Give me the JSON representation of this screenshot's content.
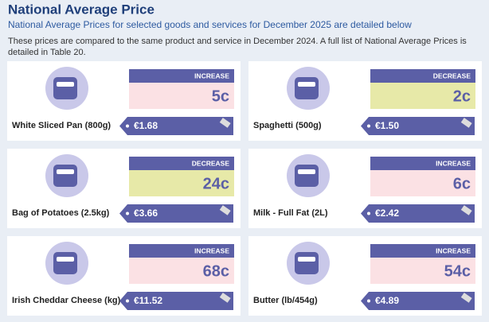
{
  "header": {
    "title": "National Average Price",
    "subtitle": "National Average Prices for selected goods and services for December 2025 are detailed below",
    "note": [
      "These prices are compared to the same product and service in December 2024. A full list of National Average Prices is",
      "detailed in Table 20."
    ]
  },
  "items": [
    {
      "name": "White Sliced Pan (800g)",
      "change_label": "INCREASE",
      "change": "5c",
      "price": "€1.68",
      "color": "#fbe1e4"
    },
    {
      "name": "Spaghetti (500g)",
      "change_label": "DECREASE",
      "change": "2c",
      "price": "€1.50",
      "color": "#e7e9a8"
    },
    {
      "name": "Bag of Potatoes (2.5kg)",
      "change_label": "DECREASE",
      "change": "24c",
      "price": "€3.66",
      "color": "#e7e9a8"
    },
    {
      "name": "Milk - Full Fat (2L)",
      "change_label": "INCREASE",
      "change": "6c",
      "price": "€2.42",
      "color": "#fbe1e4"
    },
    {
      "name": "Irish Cheddar Cheese (kg)",
      "change_label": "INCREASE",
      "change": "68c",
      "price": "€11.52",
      "color": "#fbe1e4"
    },
    {
      "name": "Butter (lb/454g)",
      "change_label": "INCREASE",
      "change": "54c",
      "price": "€4.89",
      "color": "#fbe1e4"
    }
  ]
}
